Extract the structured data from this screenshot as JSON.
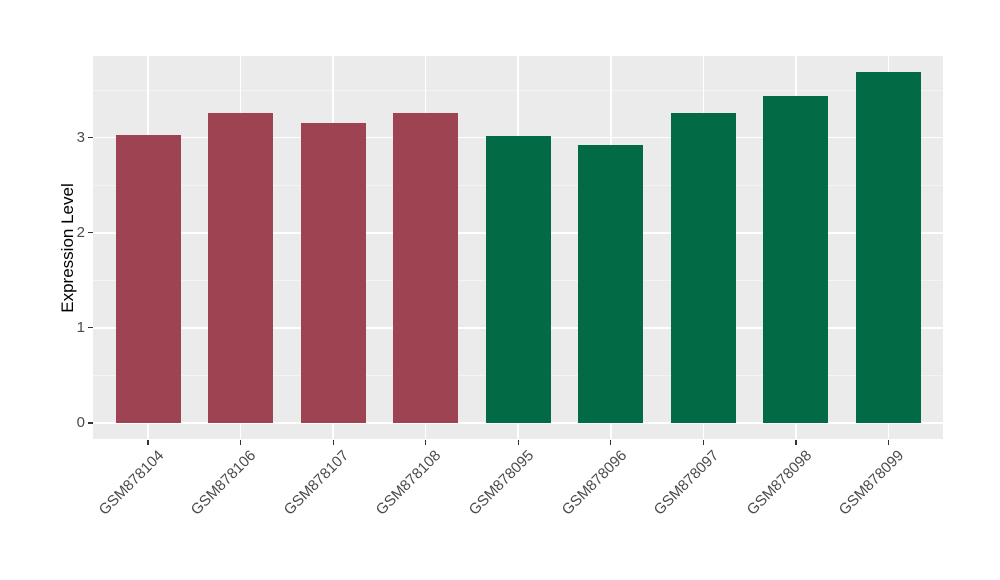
{
  "chart_data": {
    "type": "bar",
    "title": "",
    "xlabel": "",
    "ylabel": "Expression Level",
    "categories": [
      "GSM878104",
      "GSM878106",
      "GSM878107",
      "GSM878108",
      "GSM878095",
      "GSM878096",
      "GSM878097",
      "GSM878098",
      "GSM878099"
    ],
    "values": [
      3.03,
      3.26,
      3.15,
      3.26,
      3.02,
      2.92,
      3.26,
      3.44,
      3.69
    ],
    "bar_colors": [
      "#9D4352",
      "#9D4352",
      "#9D4352",
      "#9D4352",
      "#036A46",
      "#036A46",
      "#036A46",
      "#036A46",
      "#036A46"
    ],
    "group_colors": {
      "maroon_group": "#9D4352",
      "green_group": "#036A46"
    },
    "y_ticks": [
      0,
      1,
      2,
      3
    ],
    "y_tick_labels": [
      "0",
      "1",
      "2",
      "3"
    ],
    "y_minor_ticks": [
      0.5,
      1.5,
      2.5,
      3.5
    ],
    "ylim": [
      -0.17,
      3.86
    ],
    "x_tick_angle_deg": 45,
    "legend": "none",
    "grid": {
      "panel_background": "#EBEBEB",
      "major": "#FFFFFF",
      "minor": "#F4F4F4"
    },
    "figure_background": "#FFFFFF",
    "axis_text_color": "#4A4A4A",
    "axis_title_color": "#000000"
  }
}
